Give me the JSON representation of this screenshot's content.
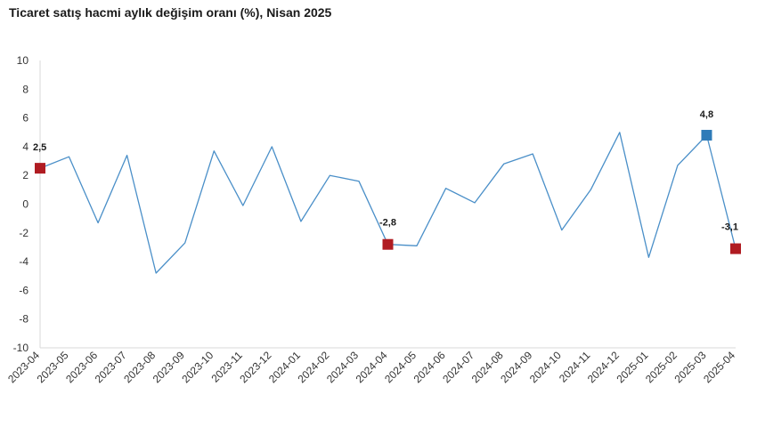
{
  "chart_data": {
    "type": "line",
    "title": "Ticaret satış hacmi aylık değişim oranı (%), Nisan 2025",
    "xlabel": "",
    "ylabel": "",
    "ylim": [
      -10,
      10
    ],
    "yticks": [
      -10,
      -8,
      -6,
      -4,
      -2,
      0,
      2,
      4,
      6,
      8,
      10
    ],
    "grid": false,
    "categories": [
      "2023-04",
      "2023-05",
      "2023-06",
      "2023-07",
      "2023-08",
      "2023-09",
      "2023-10",
      "2023-11",
      "2023-12",
      "2024-01",
      "2024-02",
      "2024-03",
      "2024-04",
      "2024-05",
      "2024-06",
      "2024-07",
      "2024-08",
      "2024-09",
      "2024-10",
      "2024-11",
      "2024-12",
      "2025-01",
      "2025-02",
      "2025-03",
      "2025-04"
    ],
    "series": [
      {
        "name": "",
        "color": "#4a8fc8",
        "values": [
          2.5,
          3.3,
          -1.3,
          3.4,
          -4.8,
          -2.7,
          3.7,
          -0.1,
          4.0,
          -1.2,
          2.0,
          1.6,
          -2.8,
          -2.9,
          1.1,
          0.1,
          2.8,
          3.5,
          -1.8,
          1.0,
          5.0,
          -3.7,
          2.7,
          4.8,
          -3.1
        ]
      }
    ],
    "highlights": [
      {
        "index": 0,
        "label": "2,5",
        "color": "#b01c22"
      },
      {
        "index": 12,
        "label": "-2,8",
        "color": "#b01c22"
      },
      {
        "index": 23,
        "label": "4,8",
        "color": "#2e7bb8"
      },
      {
        "index": 24,
        "label": "-3,1",
        "color": "#b01c22"
      }
    ]
  }
}
